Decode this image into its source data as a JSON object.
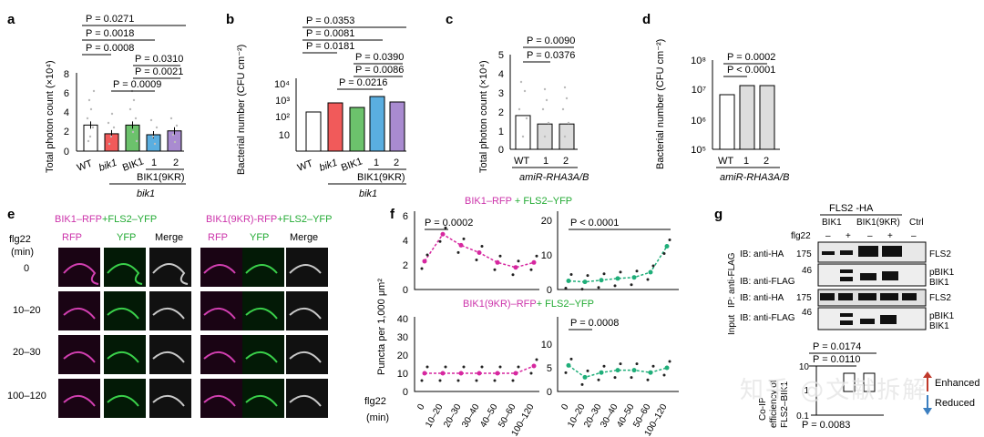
{
  "panels": {
    "a": "a",
    "b": "b",
    "c": "c",
    "d": "d",
    "e": "e",
    "f": "f",
    "g": "g"
  },
  "panel_a": {
    "ylabel": "Total photon count (×10⁴)",
    "yticks": [
      "0",
      "2",
      "4",
      "6",
      "8"
    ],
    "xlabels": [
      "WT",
      "bik1",
      "BIK1",
      "1",
      "2"
    ],
    "group1": "BIK1(9KR)",
    "group2": "bik1",
    "pvals": [
      "P = 0.0271",
      "P = 0.0018",
      "P = 0.0008",
      "P = 0.0310",
      "P = 0.0021",
      "P = 0.0009"
    ],
    "bar_values": [
      2.7,
      1.8,
      2.7,
      1.7,
      2.1
    ],
    "colors": [
      "#ffffff",
      "#f15a5a",
      "#6cc26c",
      "#5aaee0",
      "#a98bd0"
    ]
  },
  "panel_b": {
    "ylabel": "Bacterial number (CFU cm⁻²)",
    "yticks": [
      "10",
      "10²",
      "10³",
      "10⁴"
    ],
    "xlabels": [
      "WT",
      "bik1",
      "BIK1",
      "1",
      "2"
    ],
    "group1": "BIK1(9KR)",
    "group2": "bik1",
    "pvals": [
      "P = 0.0353",
      "P = 0.0081",
      "P = 0.0181",
      "P = 0.0390",
      "P = 0.0086",
      "P = 0.0216"
    ]
  },
  "panel_c": {
    "ylabel": "Total photon count (×10⁴)",
    "yticks": [
      "0",
      "1",
      "2",
      "3",
      "4",
      "5"
    ],
    "xlabels": [
      "WT",
      "1",
      "2"
    ],
    "group": "amiR-RHA3A/B",
    "pvals": [
      "P = 0.0090",
      "P = 0.0376"
    ],
    "bar_values": [
      1.8,
      1.35,
      1.35
    ]
  },
  "panel_d": {
    "ylabel": "Bacterial number (CFU cm⁻²)",
    "yticks": [
      "10⁵",
      "10⁶",
      "10⁷",
      "10⁸"
    ],
    "xlabels": [
      "WT",
      "1",
      "2"
    ],
    "group": "amiR-RHA3A/B",
    "pvals": [
      "P = 0.0002",
      "P < 0.0001"
    ]
  },
  "panel_e": {
    "title1_a": "BIK1–RFP",
    "title1_b": "+FLS2–YFP",
    "title2_a": "BIK1(9KR)-RFP",
    "title2_b": "+FLS2–YFP",
    "cols": [
      "RFP",
      "YFP",
      "Merge",
      "RFP",
      "YFP",
      "Merge"
    ],
    "rowhdr": "flg22",
    "rowunit": "(min)",
    "rows": [
      "0",
      "10–20",
      "20–30",
      "100–120"
    ]
  },
  "panel_f": {
    "top_a": "BIK1–RFP",
    "top_b": " + FLS2–YFP",
    "bot_a": "BIK1(9KR)–RFP",
    "bot_b": "+ FLS2–YFP",
    "ylabel": "Puncta per 1,000 μm²",
    "yticks_tl": [
      "0",
      "2",
      "4",
      "6"
    ],
    "yticks_tr": [
      "0",
      "10",
      "20"
    ],
    "yticks_bl": [
      "0",
      "10",
      "20",
      "30",
      "40"
    ],
    "yticks_br": [
      "0",
      "5",
      "10"
    ],
    "pvals": [
      "P = 0.0002",
      "P < 0.0001",
      "P = 0.0008"
    ],
    "xhdr": "flg22",
    "xunit": "(min)",
    "xticks": [
      "0",
      "10–20",
      "20–30",
      "30–40",
      "40–50",
      "50–60",
      "100–120"
    ],
    "chart_data": {
      "type": "line",
      "categories": [
        "0",
        "10–20",
        "20–30",
        "30–40",
        "40–50",
        "50–60",
        "100–120"
      ],
      "series": [
        {
          "name": "BIK1–RFP",
          "values": [
            2.3,
            4.5,
            3.6,
            3.0,
            2.2,
            1.8,
            2.2
          ]
        },
        {
          "name": "FLS2–YFP (BIK1)",
          "values": [
            2.5,
            2.2,
            2.7,
            3.2,
            3.5,
            5.0,
            12.5
          ]
        },
        {
          "name": "BIK1(9KR)–RFP",
          "values": [
            10,
            10,
            10,
            10,
            10,
            10,
            14
          ]
        },
        {
          "name": "FLS2–YFP (BIK1 9KR)",
          "values": [
            5.5,
            3,
            4,
            4.5,
            4.5,
            4,
            5
          ]
        }
      ]
    }
  },
  "panel_g": {
    "header": "FLS2 -HA",
    "col1": "BIK1",
    "col2": "BIK1(9KR)",
    "col3": "Ctrl",
    "flg22": "flg22",
    "signs": [
      "–",
      "+",
      "–",
      "+",
      "–"
    ],
    "ip": "IP: anti-FLAG",
    "input": "Input",
    "blots": [
      "IB: anti-HA",
      "IB: anti-FLAG",
      "IB: anti-HA",
      "IB: anti-FLAG"
    ],
    "mw": [
      "175",
      "46",
      "175",
      "46"
    ],
    "bands": [
      "FLS2",
      "pBIK1",
      "BIK1",
      "FLS2",
      "pBIK1",
      "BIK1"
    ],
    "cop_ylabel1": "Co-IP",
    "cop_ylabel2": "efficiency of",
    "cop_ylabel3": "FLS2–BIK1",
    "cop_yticks": [
      "10",
      "1",
      "0.1"
    ],
    "pvals": [
      "P = 0.0174",
      "P = 0.0110",
      "P = 0.0083"
    ],
    "enhanced": "Enhanced",
    "reduced": "Reduced"
  },
  "watermark": "知乎 @文献拆解"
}
